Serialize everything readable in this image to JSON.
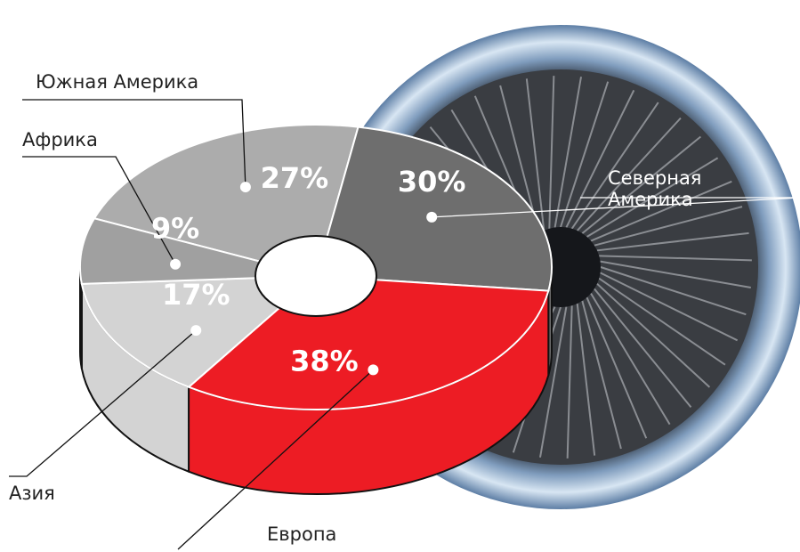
{
  "chart_data": {
    "type": "pie3d",
    "categories": [
      "Южная Америка",
      "Северная Америка",
      "Европа",
      "Азия",
      "Африка"
    ],
    "values": [
      27,
      30,
      38,
      17,
      9
    ],
    "value_labels": [
      "27%",
      "30%",
      "38%",
      "17%",
      "9%"
    ],
    "colors": [
      "#acacac",
      "#6e6e6e",
      "#ed1c24",
      "#d3d3d3",
      "#a0a0a0"
    ]
  }
}
